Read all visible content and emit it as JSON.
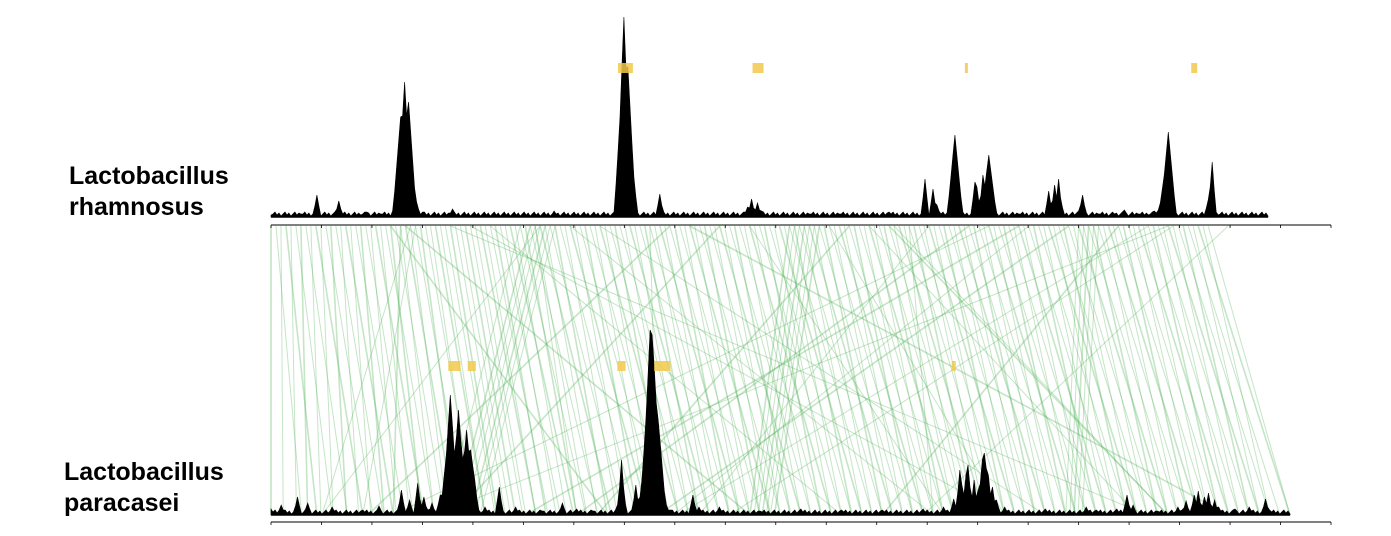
{
  "genomes": {
    "top": {
      "name_line1": "Lactobacillus",
      "name_line2": "rhamnosus"
    },
    "bottom": {
      "name_line1": "Lactobacillus",
      "name_line2": "paracasei"
    }
  },
  "colors": {
    "peaks": "#000000",
    "islands": "#f2c94c",
    "synteny": "#4caf50",
    "axis": "#000000"
  },
  "tracks": {
    "top": {
      "peaks": [
        [
          0.0,
          2
        ],
        [
          0.03,
          3
        ],
        [
          0.045,
          22
        ],
        [
          0.067,
          3
        ],
        [
          0.068,
          16
        ],
        [
          0.09,
          2
        ],
        [
          0.095,
          5
        ],
        [
          0.11,
          3
        ],
        [
          0.124,
          12
        ],
        [
          0.126,
          30
        ],
        [
          0.13,
          100
        ],
        [
          0.134,
          135
        ],
        [
          0.137,
          115
        ],
        [
          0.14,
          60
        ],
        [
          0.145,
          15
        ],
        [
          0.152,
          5
        ],
        [
          0.182,
          8
        ],
        [
          0.203,
          3
        ],
        [
          0.283,
          6
        ],
        [
          0.35,
          48
        ],
        [
          0.352,
          130
        ],
        [
          0.354,
          200
        ],
        [
          0.357,
          150
        ],
        [
          0.36,
          80
        ],
        [
          0.364,
          12
        ],
        [
          0.39,
          23
        ],
        [
          0.478,
          10
        ],
        [
          0.482,
          18
        ],
        [
          0.487,
          14
        ],
        [
          0.492,
          6
        ],
        [
          0.539,
          3
        ],
        [
          0.57,
          3
        ],
        [
          0.62,
          5
        ],
        [
          0.656,
          38
        ],
        [
          0.663,
          28
        ],
        [
          0.667,
          12
        ],
        [
          0.683,
          52
        ],
        [
          0.685,
          82
        ],
        [
          0.705,
          35
        ],
        [
          0.708,
          30
        ],
        [
          0.713,
          42
        ],
        [
          0.716,
          20
        ],
        [
          0.719,
          62
        ],
        [
          0.721,
          22
        ],
        [
          0.75,
          3
        ],
        [
          0.78,
          26
        ],
        [
          0.785,
          32
        ],
        [
          0.789,
          38
        ],
        [
          0.792,
          18
        ],
        [
          0.812,
          12
        ],
        [
          0.814,
          22
        ],
        [
          0.829,
          3
        ],
        [
          0.845,
          3
        ],
        [
          0.855,
          7
        ],
        [
          0.87,
          3
        ],
        [
          0.88,
          2
        ],
        [
          0.885,
          6
        ],
        [
          0.891,
          14
        ],
        [
          0.894,
          28
        ],
        [
          0.897,
          42
        ],
        [
          0.9,
          85
        ],
        [
          0.903,
          30
        ],
        [
          0.938,
          2
        ],
        [
          0.94,
          17
        ],
        [
          0.942,
          30
        ],
        [
          0.944,
          55
        ],
        [
          0.946,
          10
        ],
        [
          0.95,
          2
        ]
      ],
      "islands": [
        [
          0.348,
          0.363
        ],
        [
          0.483,
          0.494
        ],
        [
          0.696,
          0.699
        ],
        [
          0.923,
          0.929
        ]
      ]
    },
    "bottom": {
      "peaks": [
        [
          0.0,
          6
        ],
        [
          0.01,
          10
        ],
        [
          0.025,
          18
        ],
        [
          0.035,
          12
        ],
        [
          0.06,
          8
        ],
        [
          0.09,
          5
        ],
        [
          0.105,
          9
        ],
        [
          0.128,
          25
        ],
        [
          0.135,
          15
        ],
        [
          0.143,
          32
        ],
        [
          0.15,
          18
        ],
        [
          0.158,
          12
        ],
        [
          0.166,
          20
        ],
        [
          0.17,
          40
        ],
        [
          0.173,
          75
        ],
        [
          0.176,
          120
        ],
        [
          0.178,
          60
        ],
        [
          0.183,
          105
        ],
        [
          0.186,
          75
        ],
        [
          0.189,
          55
        ],
        [
          0.192,
          85
        ],
        [
          0.196,
          65
        ],
        [
          0.199,
          35
        ],
        [
          0.21,
          8
        ],
        [
          0.224,
          28
        ],
        [
          0.24,
          8
        ],
        [
          0.265,
          4
        ],
        [
          0.285,
          12
        ],
        [
          0.3,
          6
        ],
        [
          0.315,
          4
        ],
        [
          0.34,
          10
        ],
        [
          0.343,
          55
        ],
        [
          0.346,
          20
        ],
        [
          0.357,
          30
        ],
        [
          0.36,
          14
        ],
        [
          0.367,
          70
        ],
        [
          0.369,
          130
        ],
        [
          0.371,
          185
        ],
        [
          0.373,
          180
        ],
        [
          0.375,
          150
        ],
        [
          0.377,
          110
        ],
        [
          0.379,
          95
        ],
        [
          0.381,
          40
        ],
        [
          0.387,
          10
        ],
        [
          0.392,
          5
        ],
        [
          0.413,
          20
        ],
        [
          0.42,
          8
        ],
        [
          0.44,
          8
        ],
        [
          0.48,
          4
        ],
        [
          0.52,
          6
        ],
        [
          0.56,
          5
        ],
        [
          0.6,
          5
        ],
        [
          0.64,
          6
        ],
        [
          0.66,
          8
        ],
        [
          0.67,
          16
        ],
        [
          0.675,
          45
        ],
        [
          0.678,
          30
        ],
        [
          0.681,
          40
        ],
        [
          0.684,
          50
        ],
        [
          0.686,
          28
        ],
        [
          0.69,
          35
        ],
        [
          0.693,
          25
        ],
        [
          0.697,
          55
        ],
        [
          0.7,
          62
        ],
        [
          0.704,
          40
        ],
        [
          0.708,
          28
        ],
        [
          0.712,
          15
        ],
        [
          0.72,
          8
        ],
        [
          0.76,
          6
        ],
        [
          0.8,
          8
        ],
        [
          0.81,
          5
        ],
        [
          0.83,
          6
        ],
        [
          0.84,
          20
        ],
        [
          0.845,
          10
        ],
        [
          0.87,
          4
        ],
        [
          0.89,
          8
        ],
        [
          0.898,
          14
        ],
        [
          0.905,
          20
        ],
        [
          0.91,
          24
        ],
        [
          0.915,
          18
        ],
        [
          0.92,
          22
        ],
        [
          0.925,
          15
        ],
        [
          0.93,
          8
        ],
        [
          0.945,
          6
        ],
        [
          0.96,
          8
        ],
        [
          0.975,
          16
        ],
        [
          0.98,
          5
        ]
      ],
      "islands": [
        [
          0.174,
          0.186
        ],
        [
          0.193,
          0.201
        ],
        [
          0.34,
          0.348
        ],
        [
          0.376,
          0.392
        ],
        [
          0.668,
          0.672
        ]
      ]
    },
    "links": [
      [
        0.0,
        0.0
      ],
      [
        0.01,
        0.012
      ],
      [
        0.02,
        0.025
      ],
      [
        0.03,
        0.036
      ],
      [
        0.04,
        0.049
      ],
      [
        0.05,
        0.061
      ],
      [
        0.06,
        0.074
      ],
      [
        0.07,
        0.086
      ],
      [
        0.08,
        0.098
      ],
      [
        0.09,
        0.111
      ],
      [
        0.1,
        0.123
      ],
      [
        0.11,
        0.136
      ],
      [
        0.12,
        0.148
      ],
      [
        0.13,
        0.16
      ],
      [
        0.14,
        0.173
      ],
      [
        0.15,
        0.185
      ],
      [
        0.16,
        0.198
      ],
      [
        0.17,
        0.21
      ],
      [
        0.18,
        0.222
      ],
      [
        0.19,
        0.235
      ],
      [
        0.2,
        0.247
      ],
      [
        0.21,
        0.26
      ],
      [
        0.22,
        0.272
      ],
      [
        0.23,
        0.284
      ],
      [
        0.24,
        0.297
      ],
      [
        0.25,
        0.309
      ],
      [
        0.26,
        0.321
      ],
      [
        0.27,
        0.334
      ],
      [
        0.28,
        0.346
      ],
      [
        0.29,
        0.358
      ],
      [
        0.3,
        0.37
      ],
      [
        0.31,
        0.38
      ],
      [
        0.32,
        0.39
      ],
      [
        0.33,
        0.4
      ],
      [
        0.34,
        0.41
      ],
      [
        0.35,
        0.42
      ],
      [
        0.36,
        0.43
      ],
      [
        0.37,
        0.44
      ],
      [
        0.38,
        0.45
      ],
      [
        0.39,
        0.46
      ],
      [
        0.4,
        0.47
      ],
      [
        0.41,
        0.48
      ],
      [
        0.42,
        0.49
      ],
      [
        0.43,
        0.5
      ],
      [
        0.44,
        0.51
      ],
      [
        0.45,
        0.52
      ],
      [
        0.46,
        0.53
      ],
      [
        0.47,
        0.54
      ],
      [
        0.48,
        0.55
      ],
      [
        0.49,
        0.56
      ],
      [
        0.5,
        0.57
      ],
      [
        0.51,
        0.58
      ],
      [
        0.52,
        0.59
      ],
      [
        0.53,
        0.6
      ],
      [
        0.54,
        0.61
      ],
      [
        0.55,
        0.62
      ],
      [
        0.56,
        0.63
      ],
      [
        0.57,
        0.64
      ],
      [
        0.58,
        0.65
      ],
      [
        0.59,
        0.66
      ],
      [
        0.6,
        0.67
      ],
      [
        0.61,
        0.68
      ],
      [
        0.62,
        0.69
      ],
      [
        0.63,
        0.7
      ],
      [
        0.64,
        0.71
      ],
      [
        0.65,
        0.72
      ],
      [
        0.66,
        0.73
      ],
      [
        0.67,
        0.74
      ],
      [
        0.68,
        0.75
      ],
      [
        0.69,
        0.76
      ],
      [
        0.7,
        0.77
      ],
      [
        0.71,
        0.78
      ],
      [
        0.72,
        0.79
      ],
      [
        0.73,
        0.8
      ],
      [
        0.74,
        0.81
      ],
      [
        0.75,
        0.82
      ],
      [
        0.76,
        0.83
      ],
      [
        0.77,
        0.84
      ],
      [
        0.78,
        0.85
      ],
      [
        0.79,
        0.86
      ],
      [
        0.8,
        0.87
      ],
      [
        0.81,
        0.88
      ],
      [
        0.82,
        0.89
      ],
      [
        0.83,
        0.9
      ],
      [
        0.84,
        0.91
      ],
      [
        0.85,
        0.92
      ],
      [
        0.86,
        0.93
      ],
      [
        0.87,
        0.94
      ],
      [
        0.88,
        0.95
      ],
      [
        0.89,
        0.96
      ],
      [
        0.9,
        0.97
      ],
      [
        0.91,
        0.98
      ],
      [
        0.92,
        0.99
      ],
      [
        0.93,
        1.0
      ],
      [
        0.94,
        1.0
      ],
      [
        0.005,
        0.03
      ],
      [
        0.015,
        0.045
      ],
      [
        0.025,
        0.06
      ],
      [
        0.035,
        0.075
      ],
      [
        0.045,
        0.09
      ],
      [
        0.055,
        0.1
      ],
      [
        0.065,
        0.11
      ],
      [
        0.075,
        0.12
      ],
      [
        0.085,
        0.13
      ],
      [
        0.095,
        0.14
      ],
      [
        0.105,
        0.15
      ],
      [
        0.115,
        0.16
      ],
      [
        0.125,
        0.17
      ],
      [
        0.135,
        0.18
      ],
      [
        0.145,
        0.19
      ],
      [
        0.155,
        0.2
      ],
      [
        0.165,
        0.21
      ],
      [
        0.175,
        0.22
      ],
      [
        0.185,
        0.23
      ],
      [
        0.195,
        0.24
      ],
      [
        0.205,
        0.25
      ],
      [
        0.215,
        0.26
      ],
      [
        0.225,
        0.27
      ],
      [
        0.235,
        0.28
      ],
      [
        0.245,
        0.29
      ],
      [
        0.255,
        0.3
      ],
      [
        0.265,
        0.31
      ],
      [
        0.275,
        0.32
      ],
      [
        0.285,
        0.33
      ],
      [
        0.295,
        0.34
      ],
      [
        0.305,
        0.35
      ],
      [
        0.315,
        0.36
      ],
      [
        0.325,
        0.37
      ],
      [
        0.335,
        0.38
      ],
      [
        0.345,
        0.39
      ],
      [
        0.355,
        0.4
      ],
      [
        0.365,
        0.41
      ],
      [
        0.375,
        0.42
      ],
      [
        0.385,
        0.43
      ],
      [
        0.395,
        0.44
      ],
      [
        0.405,
        0.45
      ],
      [
        0.415,
        0.46
      ],
      [
        0.425,
        0.47
      ],
      [
        0.435,
        0.48
      ],
      [
        0.445,
        0.49
      ],
      [
        0.455,
        0.5
      ],
      [
        0.465,
        0.51
      ],
      [
        0.475,
        0.52
      ],
      [
        0.485,
        0.53
      ],
      [
        0.495,
        0.54
      ],
      [
        0.505,
        0.55
      ],
      [
        0.515,
        0.56
      ],
      [
        0.525,
        0.57
      ],
      [
        0.535,
        0.58
      ],
      [
        0.545,
        0.59
      ],
      [
        0.555,
        0.6
      ],
      [
        0.565,
        0.61
      ],
      [
        0.575,
        0.62
      ],
      [
        0.585,
        0.63
      ],
      [
        0.595,
        0.64
      ],
      [
        0.605,
        0.65
      ],
      [
        0.615,
        0.66
      ],
      [
        0.625,
        0.67
      ],
      [
        0.635,
        0.68
      ],
      [
        0.645,
        0.69
      ],
      [
        0.655,
        0.7
      ],
      [
        0.665,
        0.71
      ],
      [
        0.675,
        0.72
      ],
      [
        0.685,
        0.73
      ],
      [
        0.695,
        0.74
      ],
      [
        0.705,
        0.75
      ],
      [
        0.715,
        0.76
      ],
      [
        0.725,
        0.77
      ],
      [
        0.735,
        0.78
      ],
      [
        0.745,
        0.79
      ],
      [
        0.755,
        0.8
      ],
      [
        0.765,
        0.81
      ],
      [
        0.775,
        0.82
      ],
      [
        0.785,
        0.83
      ],
      [
        0.795,
        0.84
      ],
      [
        0.805,
        0.85
      ],
      [
        0.815,
        0.86
      ],
      [
        0.825,
        0.87
      ],
      [
        0.835,
        0.88
      ],
      [
        0.845,
        0.89
      ],
      [
        0.855,
        0.9
      ],
      [
        0.865,
        0.91
      ],
      [
        0.875,
        0.92
      ],
      [
        0.885,
        0.93
      ],
      [
        0.895,
        0.94
      ],
      [
        0.905,
        0.95
      ],
      [
        0.915,
        0.96
      ],
      [
        0.925,
        0.97
      ],
      [
        0.935,
        0.98
      ],
      [
        0.26,
        0.18
      ],
      [
        0.265,
        0.185
      ],
      [
        0.27,
        0.19
      ],
      [
        0.275,
        0.196
      ],
      [
        0.28,
        0.2
      ],
      [
        0.285,
        0.205
      ],
      [
        0.52,
        0.47
      ],
      [
        0.525,
        0.474
      ],
      [
        0.53,
        0.478
      ],
      [
        0.535,
        0.482
      ],
      [
        0.54,
        0.486
      ],
      [
        0.545,
        0.49
      ],
      [
        0.55,
        0.494
      ],
      [
        0.81,
        0.78
      ],
      [
        0.815,
        0.784
      ],
      [
        0.82,
        0.788
      ],
      [
        0.825,
        0.792
      ],
      [
        0.83,
        0.796
      ],
      [
        0.135,
        0.47
      ],
      [
        0.14,
        0.05
      ],
      [
        0.145,
        0.09
      ],
      [
        0.13,
        0.12
      ],
      [
        0.27,
        0.05
      ],
      [
        0.265,
        0.3
      ],
      [
        0.62,
        0.88
      ],
      [
        0.625,
        0.88
      ],
      [
        0.76,
        0.395
      ],
      [
        0.8,
        0.38
      ],
      [
        0.88,
        0.4
      ],
      [
        0.905,
        0.45
      ],
      [
        0.4,
        0.095
      ],
      [
        0.38,
        0.38
      ],
      [
        0.64,
        0.65
      ],
      [
        0.45,
        0.18
      ],
      [
        0.56,
        0.72
      ],
      [
        0.33,
        0.76
      ],
      [
        0.7,
        0.3
      ],
      [
        0.3,
        0.65
      ],
      [
        0.6,
        0.85
      ],
      [
        0.85,
        0.6
      ],
      [
        0.25,
        0.17
      ],
      [
        0.2,
        0.72
      ],
      [
        0.75,
        0.25
      ],
      [
        0.48,
        0.66
      ],
      [
        0.66,
        0.42
      ],
      [
        0.12,
        0.33
      ],
      [
        0.9,
        0.16
      ],
      [
        0.18,
        0.86
      ],
      [
        0.58,
        0.32
      ],
      [
        0.72,
        0.12
      ],
      [
        0.22,
        0.56
      ],
      [
        0.42,
        0.94
      ],
      [
        0.96,
        0.64
      ]
    ]
  }
}
